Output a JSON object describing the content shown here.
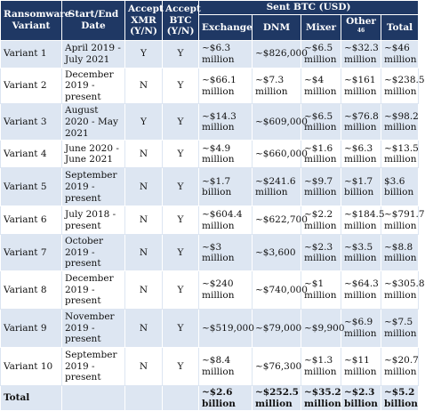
{
  "headers": {
    "variant": "Ransomware Variant",
    "dates": "Start/End Date",
    "xmr": "Accept XMR (Y/N)",
    "btc": "Accept BTC (Y/N)",
    "sent_group": "Sent BTC (USD)",
    "exchange": "Exchange",
    "dnm": "DNM",
    "mixer": "Mixer",
    "other": "Other",
    "other_sup": "46",
    "total": "Total"
  },
  "rows": [
    {
      "variant": "Variant 1",
      "dates": "April 2019 - July 2021",
      "xmr": "Y",
      "btc": "Y",
      "exchange": "~$6.3 million",
      "dnm": "~$826,000",
      "mixer": "~$6.5 million",
      "other": "~$32.3 million",
      "total": "~$46 million"
    },
    {
      "variant": "Variant 2",
      "dates": "December 2019 - present",
      "xmr": "N",
      "btc": "Y",
      "exchange": "~$66.1 million",
      "dnm": "~$7.3 million",
      "mixer": "~$4 million",
      "other": "~$161 million",
      "total": "~$238.5 million"
    },
    {
      "variant": "Variant 3",
      "dates": "August 2020 - May 2021",
      "xmr": "Y",
      "btc": "Y",
      "exchange": "~$14.3 million",
      "dnm": "~$609,000",
      "mixer": "~$6.5 million",
      "other": "~$76.8 million",
      "total": "~$98.2 million"
    },
    {
      "variant": "Variant 4",
      "dates": "June 2020 - June 2021",
      "xmr": "N",
      "btc": "Y",
      "exchange": "~$4.9 million",
      "dnm": "~$660,000",
      "mixer": "~$1.6 million",
      "other": "~$6.3 million",
      "total": "~$13.5 million"
    },
    {
      "variant": "Variant 5",
      "dates": "September 2019 - present",
      "xmr": "N",
      "btc": "Y",
      "exchange": "~$1.7 billion",
      "dnm": "~$241.6 million",
      "mixer": "~$9.7 million",
      "other": "~$1.7 billion",
      "total": "$3.6 billion"
    },
    {
      "variant": "Variant 6",
      "dates": "July 2018 - present",
      "xmr": "N",
      "btc": "Y",
      "exchange": "~$604.4 million",
      "dnm": "~$622,700",
      "mixer": "~$2.2 million",
      "other": "~$184.5 million",
      "total": "~$791.7 million"
    },
    {
      "variant": "Variant 7",
      "dates": "October 2019 - present",
      "xmr": "N",
      "btc": "Y",
      "exchange": "~$3 million",
      "dnm": "~$3,600",
      "mixer": "~$2.3 million",
      "other": "~$3.5 million",
      "total": "~$8.8 million"
    },
    {
      "variant": "Variant 8",
      "dates": "December 2019 - present",
      "xmr": "N",
      "btc": "Y",
      "exchange": "~$240 million",
      "dnm": "~$740,000",
      "mixer": "~$1 million",
      "other": "~$64.3 million",
      "total": "~$305.8 million"
    },
    {
      "variant": "Variant 9",
      "dates": "November 2019 - present",
      "xmr": "N",
      "btc": "Y",
      "exchange": "~$519,000",
      "dnm": "~$79,000",
      "mixer": "~$9,900",
      "other": "~$6.9 million",
      "total": "~$7.5 million"
    },
    {
      "variant": "Variant 10",
      "dates": "September 2019 - present",
      "xmr": "N",
      "btc": "Y",
      "exchange": "~$8.4 million",
      "dnm": "~$76,300",
      "mixer": "~$1.3 million",
      "other": "~$11 million",
      "total": "~$20.7 million"
    }
  ],
  "totals": {
    "label": "Total",
    "exchange": "~$2.6 billion",
    "dnm": "~$252.5 million",
    "mixer": "~$35.2 million",
    "other": "~$2.3 billion",
    "total": "~$5.2 billion"
  }
}
